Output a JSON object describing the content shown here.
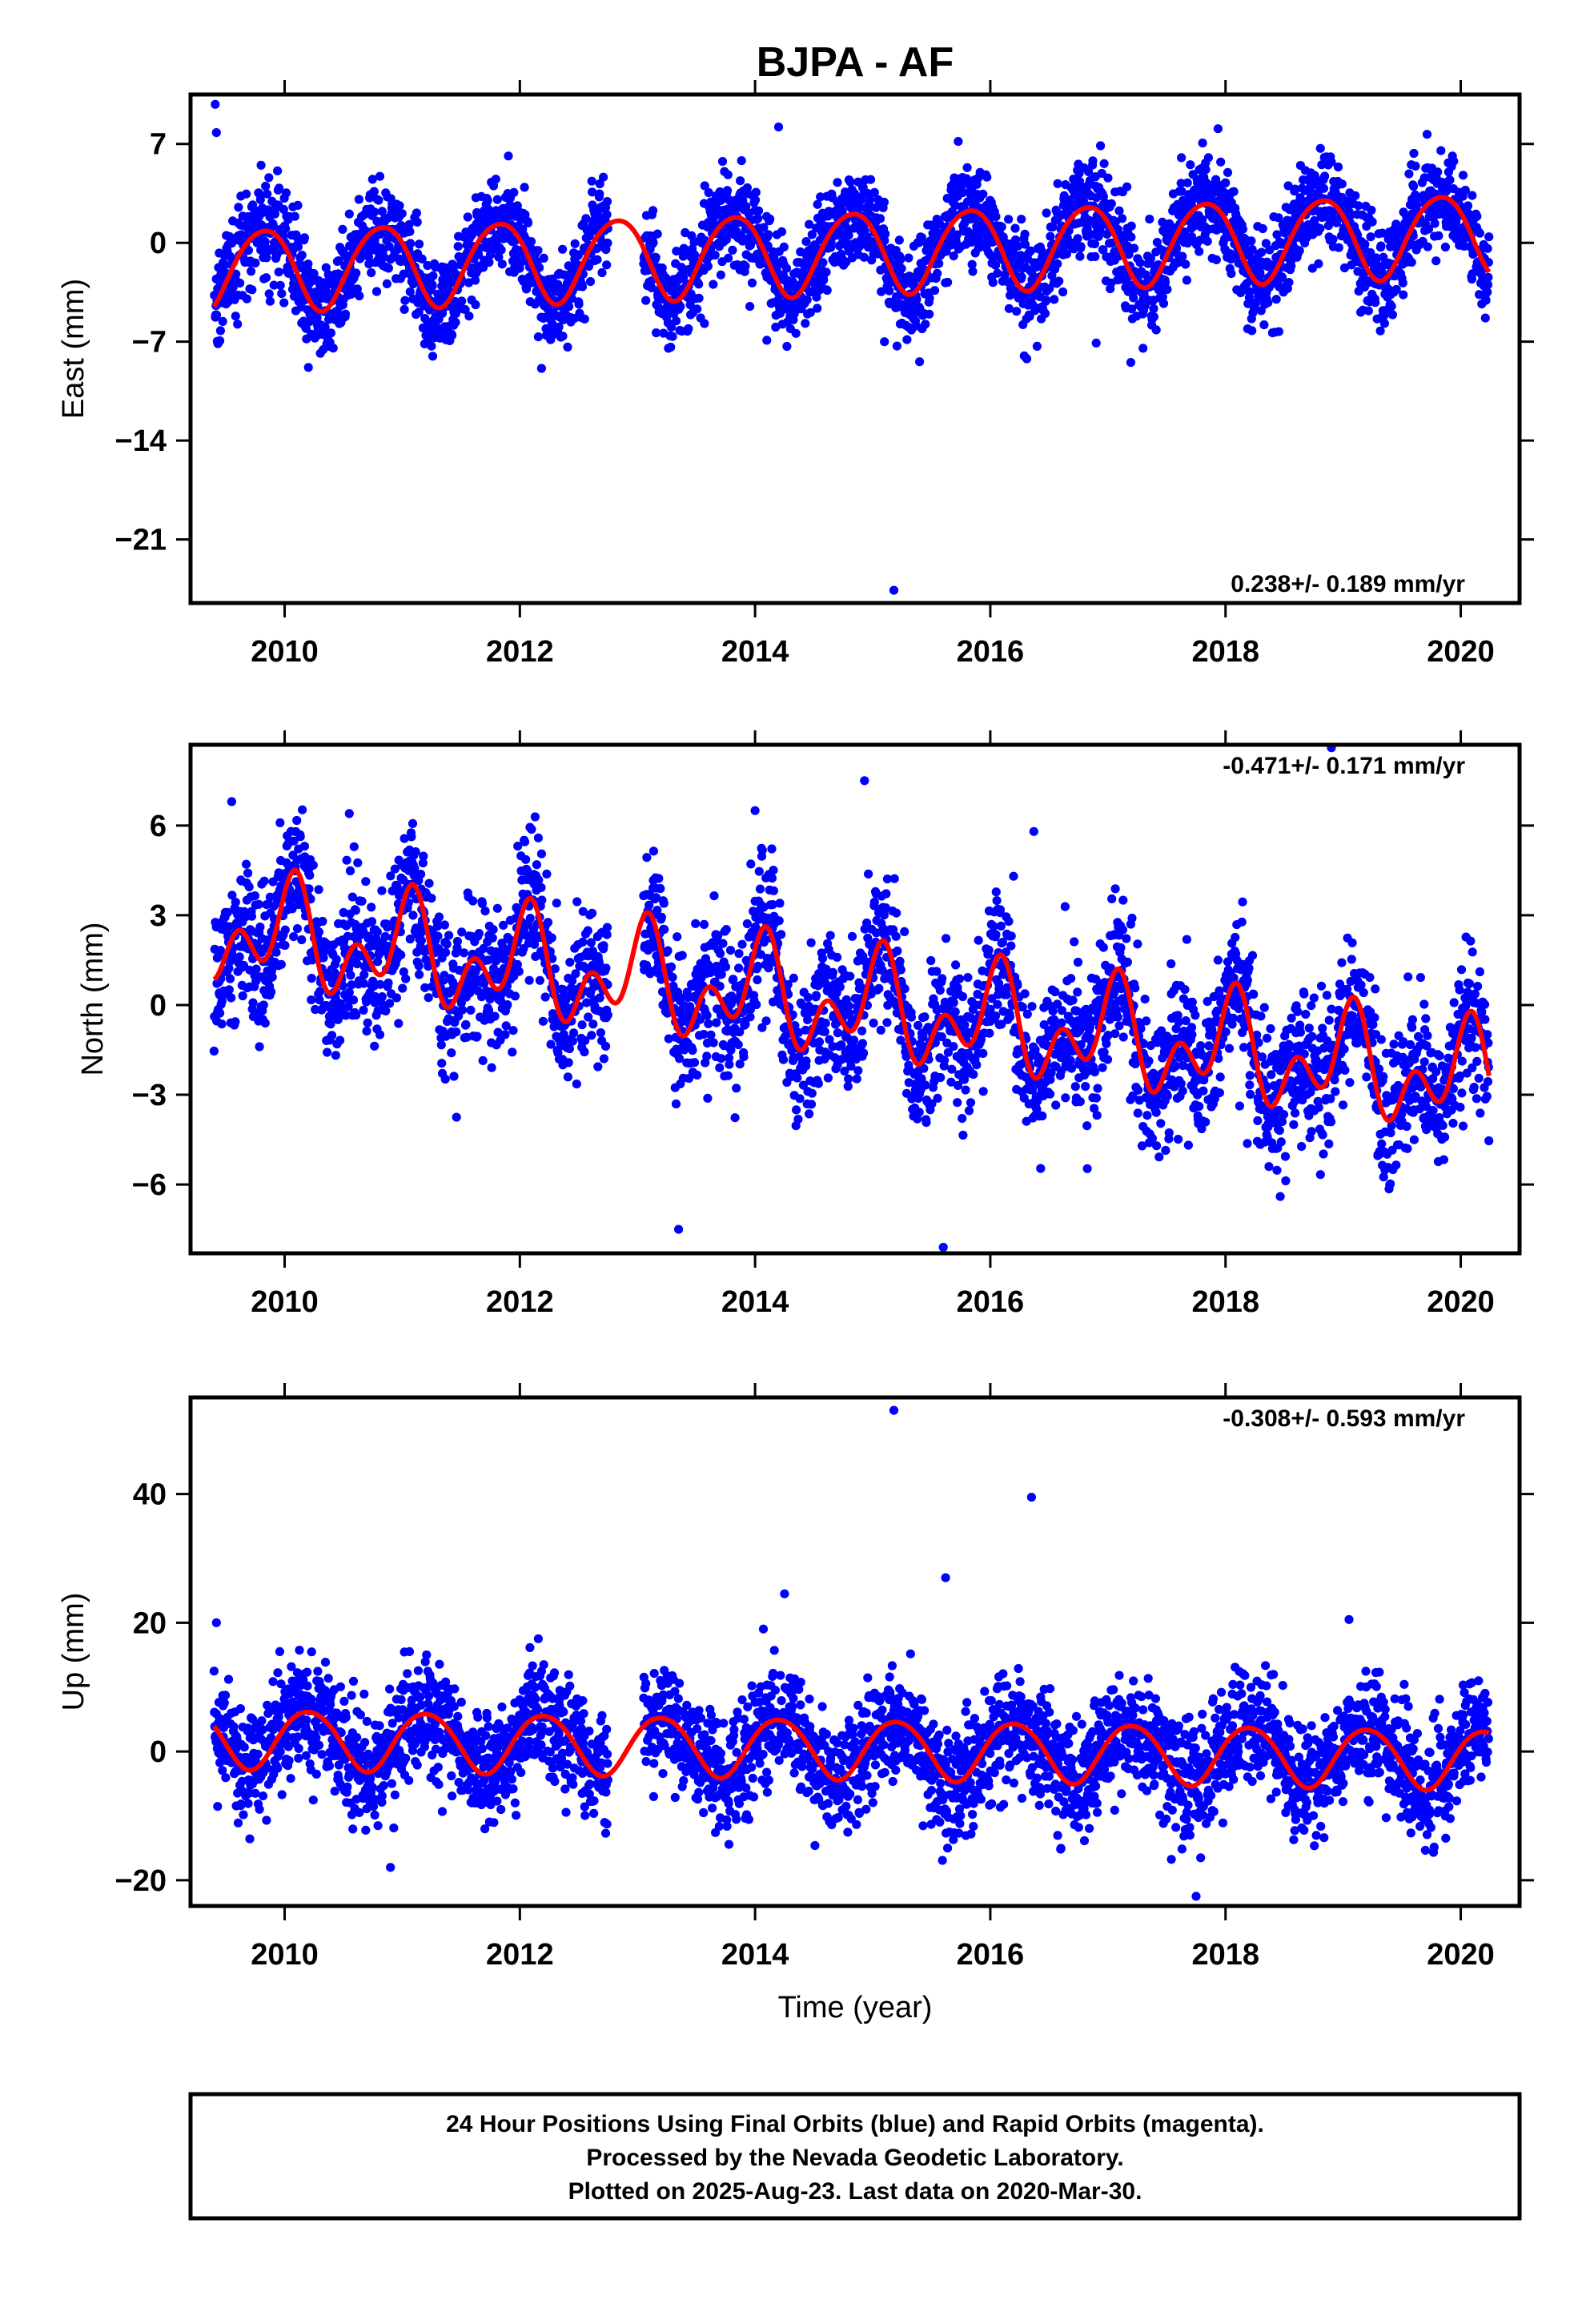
{
  "title": "BJPA - AF",
  "chart_data": [
    {
      "type": "scatter",
      "id": "east",
      "ylabel": "East (mm)",
      "xlabel": "",
      "rate_label": "0.238+/- 0.189 mm/yr",
      "rate_position": "bottom-right",
      "xlim": [
        2009.2,
        2020.5
      ],
      "ylim": [
        -25.5,
        10.5
      ],
      "xticks": [
        2010,
        2012,
        2014,
        2016,
        2018,
        2020
      ],
      "yticks": [
        7,
        0,
        -7,
        -14,
        -21
      ],
      "grid": false,
      "model": {
        "offset": -0.6,
        "rate": 0.238,
        "annual_amp": 2.9,
        "annual_phase": 2.7,
        "semi_amp": 0.3,
        "semi_phase": 1.0,
        "ref_year": 2014.8
      },
      "scatter_sigma": 1.7,
      "outliers": [
        [
          2009.41,
          9.8
        ],
        [
          2009.42,
          7.8
        ],
        [
          2014.2,
          8.2
        ],
        [
          2015.18,
          -24.6
        ],
        [
          2015.1,
          -7.0
        ],
        [
          2016.9,
          -7.1
        ],
        [
          2014.1,
          -6.9
        ]
      ],
      "series": [
        {
          "name": "Final Orbits",
          "color": "#0000ff",
          "kind": "points"
        },
        {
          "name": "Model",
          "color": "#ff0000",
          "kind": "line"
        }
      ]
    },
    {
      "type": "scatter",
      "id": "north",
      "ylabel": "North (mm)",
      "xlabel": "",
      "rate_label": "-0.471+/- 0.171 mm/yr",
      "rate_position": "top-right",
      "xlim": [
        2009.2,
        2020.5
      ],
      "ylim": [
        -8.3,
        8.7
      ],
      "xticks": [
        2010,
        2012,
        2014,
        2016,
        2018,
        2020
      ],
      "yticks": [
        6,
        3,
        0,
        -3,
        -6
      ],
      "grid": false,
      "model": {
        "offset": 0.0,
        "rate": -0.471,
        "annual_amp": 1.2,
        "annual_phase": 1.3,
        "semi_amp": 1.15,
        "semi_phase": 0.3,
        "ref_year": 2014.8
      },
      "scatter_sigma": 1.2,
      "outliers": [
        [
          2009.55,
          6.8
        ],
        [
          2010.55,
          6.4
        ],
        [
          2014.0,
          6.5
        ],
        [
          2014.93,
          7.5
        ],
        [
          2013.35,
          -7.5
        ],
        [
          2015.6,
          -8.1
        ],
        [
          2018.9,
          8.6
        ],
        [
          2016.37,
          5.8
        ]
      ],
      "series": [
        {
          "name": "Final Orbits",
          "color": "#0000ff",
          "kind": "points"
        },
        {
          "name": "Model",
          "color": "#ff0000",
          "kind": "line"
        }
      ]
    },
    {
      "type": "scatter",
      "id": "up",
      "ylabel": "Up (mm)",
      "xlabel": "Time (year)",
      "rate_label": "-0.308+/- 0.593 mm/yr",
      "rate_position": "top-right",
      "xlim": [
        2009.2,
        2020.5
      ],
      "ylim": [
        -24,
        55
      ],
      "xticks": [
        2010,
        2012,
        2014,
        2016,
        2018,
        2020
      ],
      "yticks": [
        40,
        20,
        0,
        -20
      ],
      "grid": false,
      "model": {
        "offset": 0.5,
        "rate": -0.308,
        "annual_amp": 4.6,
        "annual_phase": 0.3,
        "semi_amp": 0.4,
        "semi_phase": 2.0,
        "ref_year": 2014.8
      },
      "scatter_sigma": 4.3,
      "outliers": [
        [
          2015.18,
          53.0
        ],
        [
          2016.35,
          39.5
        ],
        [
          2015.62,
          27.0
        ],
        [
          2014.25,
          24.5
        ],
        [
          2017.75,
          -22.5
        ],
        [
          2009.42,
          20.0
        ],
        [
          2019.05,
          20.5
        ],
        [
          2010.9,
          -18.0
        ]
      ],
      "series": [
        {
          "name": "Final Orbits",
          "color": "#0000ff",
          "kind": "points"
        },
        {
          "name": "Model",
          "color": "#ff0000",
          "kind": "line"
        }
      ]
    }
  ],
  "footer": {
    "line1": "24 Hour Positions Using Final Orbits (blue) and Rapid Orbits (magenta).",
    "line2": "Processed by the Nevada Geodetic Laboratory.",
    "line3": "Plotted on 2025-Aug-23. Last data on 2020-Mar-30."
  },
  "colors": {
    "points": "#0000ff",
    "model": "#ff0000",
    "frame": "#000000"
  },
  "data_range": {
    "start": 2009.4,
    "end": 2020.24,
    "gap": [
      2012.75,
      2013.05
    ]
  }
}
